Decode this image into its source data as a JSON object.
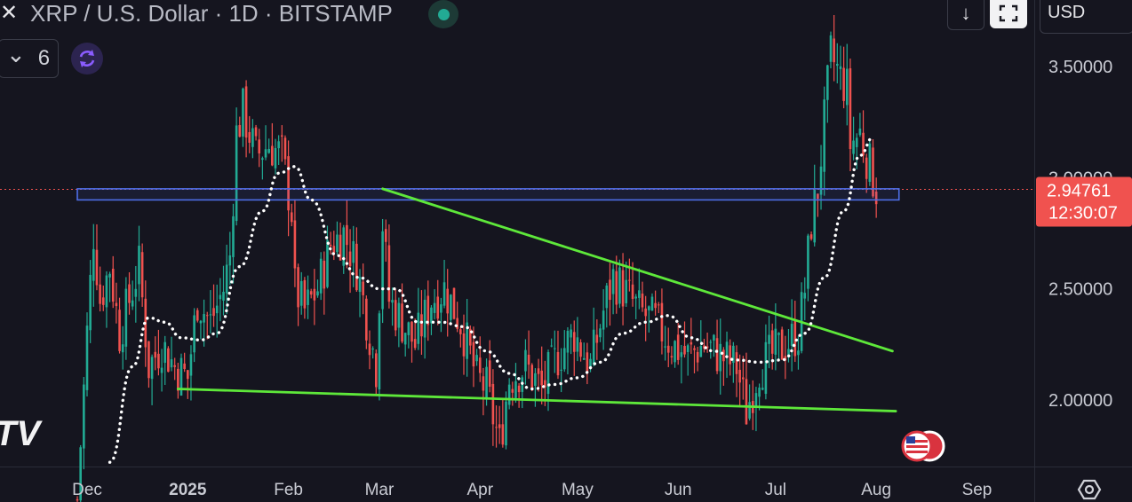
{
  "header": {
    "close_glyph": "✕",
    "symbol_title": "XRP / U.S. Dollar · 1D · BITSTAMP",
    "market_status_color": "#22ab94",
    "indicator_count": "6",
    "chevron_glyph": "⌄"
  },
  "toolbar": {
    "currency": "USD",
    "download_glyph": "↓"
  },
  "price_badge": {
    "price": "2.94761",
    "countdown": "12:30:07",
    "color": "#f0524f"
  },
  "watermark": "TV",
  "colors": {
    "up": "#22ab94",
    "down": "#f0524f",
    "trendline": "#5ee83a",
    "zone": "#4e6ee6",
    "ma": "#ffffff",
    "background": "#15151f",
    "axis_text": "#c9cbd3"
  },
  "chart_data": {
    "type": "candlestick",
    "title": "XRP / U.S. Dollar · 1D · BITSTAMP",
    "y_axis_ticks": [
      "3.50000",
      "3.00000",
      "2.50000",
      "2.00000"
    ],
    "y_axis_tick_values": [
      3.5,
      3.0,
      2.5,
      2.0
    ],
    "x_axis_ticks": [
      "Dec",
      "2025",
      "Feb",
      "Mar",
      "Apr",
      "May",
      "Jun",
      "Jul",
      "Aug",
      "Sep"
    ],
    "x_axis_tick_dates": [
      "2024-12-01",
      "2025-01-01",
      "2025-02-01",
      "2025-03-01",
      "2025-04-01",
      "2025-05-01",
      "2025-06-01",
      "2025-07-01",
      "2025-08-01",
      "2025-09-01"
    ],
    "ylim": [
      1.7,
      3.7
    ],
    "current_price": 2.94761,
    "price_path": [
      [
        "2024-11-28",
        1.55
      ],
      [
        "2024-12-01",
        2.3
      ],
      [
        "2024-12-03",
        2.75
      ],
      [
        "2024-12-05",
        2.45
      ],
      [
        "2024-12-08",
        2.6
      ],
      [
        "2024-12-11",
        2.3
      ],
      [
        "2024-12-14",
        2.45
      ],
      [
        "2024-12-17",
        2.6
      ],
      [
        "2024-12-20",
        2.15
      ],
      [
        "2024-12-24",
        2.25
      ],
      [
        "2024-12-28",
        2.15
      ],
      [
        "2025-01-01",
        2.1
      ],
      [
        "2025-01-04",
        2.45
      ],
      [
        "2025-01-08",
        2.35
      ],
      [
        "2025-01-12",
        2.5
      ],
      [
        "2025-01-14",
        2.65
      ],
      [
        "2025-01-16",
        3.2
      ],
      [
        "2025-01-18",
        3.3
      ],
      [
        "2025-01-22",
        3.1
      ],
      [
        "2025-01-26",
        3.15
      ],
      [
        "2025-01-30",
        3.1
      ],
      [
        "2025-02-02",
        2.85
      ],
      [
        "2025-02-03",
        2.5
      ],
      [
        "2025-02-06",
        2.4
      ],
      [
        "2025-02-10",
        2.5
      ],
      [
        "2025-02-14",
        2.7
      ],
      [
        "2025-02-18",
        2.75
      ],
      [
        "2025-02-22",
        2.6
      ],
      [
        "2025-02-26",
        2.3
      ],
      [
        "2025-02-28",
        2.15
      ],
      [
        "2025-03-02",
        2.8
      ],
      [
        "2025-03-04",
        2.45
      ],
      [
        "2025-03-08",
        2.35
      ],
      [
        "2025-03-12",
        2.25
      ],
      [
        "2025-03-17",
        2.45
      ],
      [
        "2025-03-21",
        2.5
      ],
      [
        "2025-03-26",
        2.35
      ],
      [
        "2025-03-31",
        2.1
      ],
      [
        "2025-04-03",
        2.05
      ],
      [
        "2025-04-07",
        1.8
      ],
      [
        "2025-04-10",
        2.1
      ],
      [
        "2025-04-15",
        2.15
      ],
      [
        "2025-04-20",
        2.05
      ],
      [
        "2025-04-25",
        2.2
      ],
      [
        "2025-04-30",
        2.3
      ],
      [
        "2025-05-05",
        2.15
      ],
      [
        "2025-05-09",
        2.4
      ],
      [
        "2025-05-12",
        2.55
      ],
      [
        "2025-05-15",
        2.5
      ],
      [
        "2025-05-20",
        2.4
      ],
      [
        "2025-05-25",
        2.35
      ],
      [
        "2025-05-30",
        2.25
      ],
      [
        "2025-06-04",
        2.2
      ],
      [
        "2025-06-09",
        2.25
      ],
      [
        "2025-06-14",
        2.2
      ],
      [
        "2025-06-19",
        2.15
      ],
      [
        "2025-06-22",
        1.95
      ],
      [
        "2025-06-26",
        2.15
      ],
      [
        "2025-06-30",
        2.2
      ],
      [
        "2025-07-04",
        2.25
      ],
      [
        "2025-07-08",
        2.3
      ],
      [
        "2025-07-10",
        2.5
      ],
      [
        "2025-07-12",
        2.8
      ],
      [
        "2025-07-14",
        2.95
      ],
      [
        "2025-07-17",
        3.4
      ],
      [
        "2025-07-18",
        3.55
      ],
      [
        "2025-07-21",
        3.45
      ],
      [
        "2025-07-23",
        3.4
      ],
      [
        "2025-07-24",
        3.15
      ],
      [
        "2025-07-27",
        3.2
      ],
      [
        "2025-07-30",
        3.05
      ],
      [
        "2025-08-01",
        2.95
      ]
    ],
    "moving_average": {
      "name": "",
      "style": "dotted",
      "points": [
        [
          "2024-12-08",
          1.72
        ],
        [
          "2024-12-15",
          2.15
        ],
        [
          "2024-12-20",
          2.37
        ],
        [
          "2024-12-25",
          2.35
        ],
        [
          "2024-12-30",
          2.28
        ],
        [
          "2025-01-05",
          2.27
        ],
        [
          "2025-01-10",
          2.3
        ],
        [
          "2025-01-17",
          2.6
        ],
        [
          "2025-01-24",
          2.85
        ],
        [
          "2025-01-29",
          3.02
        ],
        [
          "2025-02-03",
          3.05
        ],
        [
          "2025-02-08",
          2.9
        ],
        [
          "2025-02-16",
          2.65
        ],
        [
          "2025-02-23",
          2.55
        ],
        [
          "2025-03-01",
          2.5
        ],
        [
          "2025-03-06",
          2.5
        ],
        [
          "2025-03-13",
          2.35
        ],
        [
          "2025-03-20",
          2.35
        ],
        [
          "2025-03-27",
          2.33
        ],
        [
          "2025-04-03",
          2.22
        ],
        [
          "2025-04-10",
          2.12
        ],
        [
          "2025-04-17",
          2.05
        ],
        [
          "2025-04-24",
          2.07
        ],
        [
          "2025-05-01",
          2.1
        ],
        [
          "2025-05-08",
          2.17
        ],
        [
          "2025-05-15",
          2.3
        ],
        [
          "2025-05-22",
          2.35
        ],
        [
          "2025-05-29",
          2.38
        ],
        [
          "2025-06-05",
          2.28
        ],
        [
          "2025-06-12",
          2.22
        ],
        [
          "2025-06-19",
          2.18
        ],
        [
          "2025-06-26",
          2.17
        ],
        [
          "2025-07-03",
          2.18
        ],
        [
          "2025-07-10",
          2.3
        ],
        [
          "2025-07-16",
          2.55
        ],
        [
          "2025-07-22",
          2.85
        ],
        [
          "2025-07-27",
          3.1
        ],
        [
          "2025-07-31",
          3.18
        ]
      ]
    },
    "horizontal_zone": {
      "y_low": 2.9,
      "y_high": 2.95,
      "x_start": "2024-11-28",
      "x_end": "2025-08-08"
    },
    "trendlines": [
      {
        "name": "",
        "points": [
          [
            "2025-03-02",
            2.95
          ],
          [
            "2025-08-06",
            2.22
          ]
        ]
      },
      {
        "name": "",
        "points": [
          [
            "2024-12-29",
            2.05
          ],
          [
            "2025-08-07",
            1.95
          ]
        ]
      }
    ]
  }
}
